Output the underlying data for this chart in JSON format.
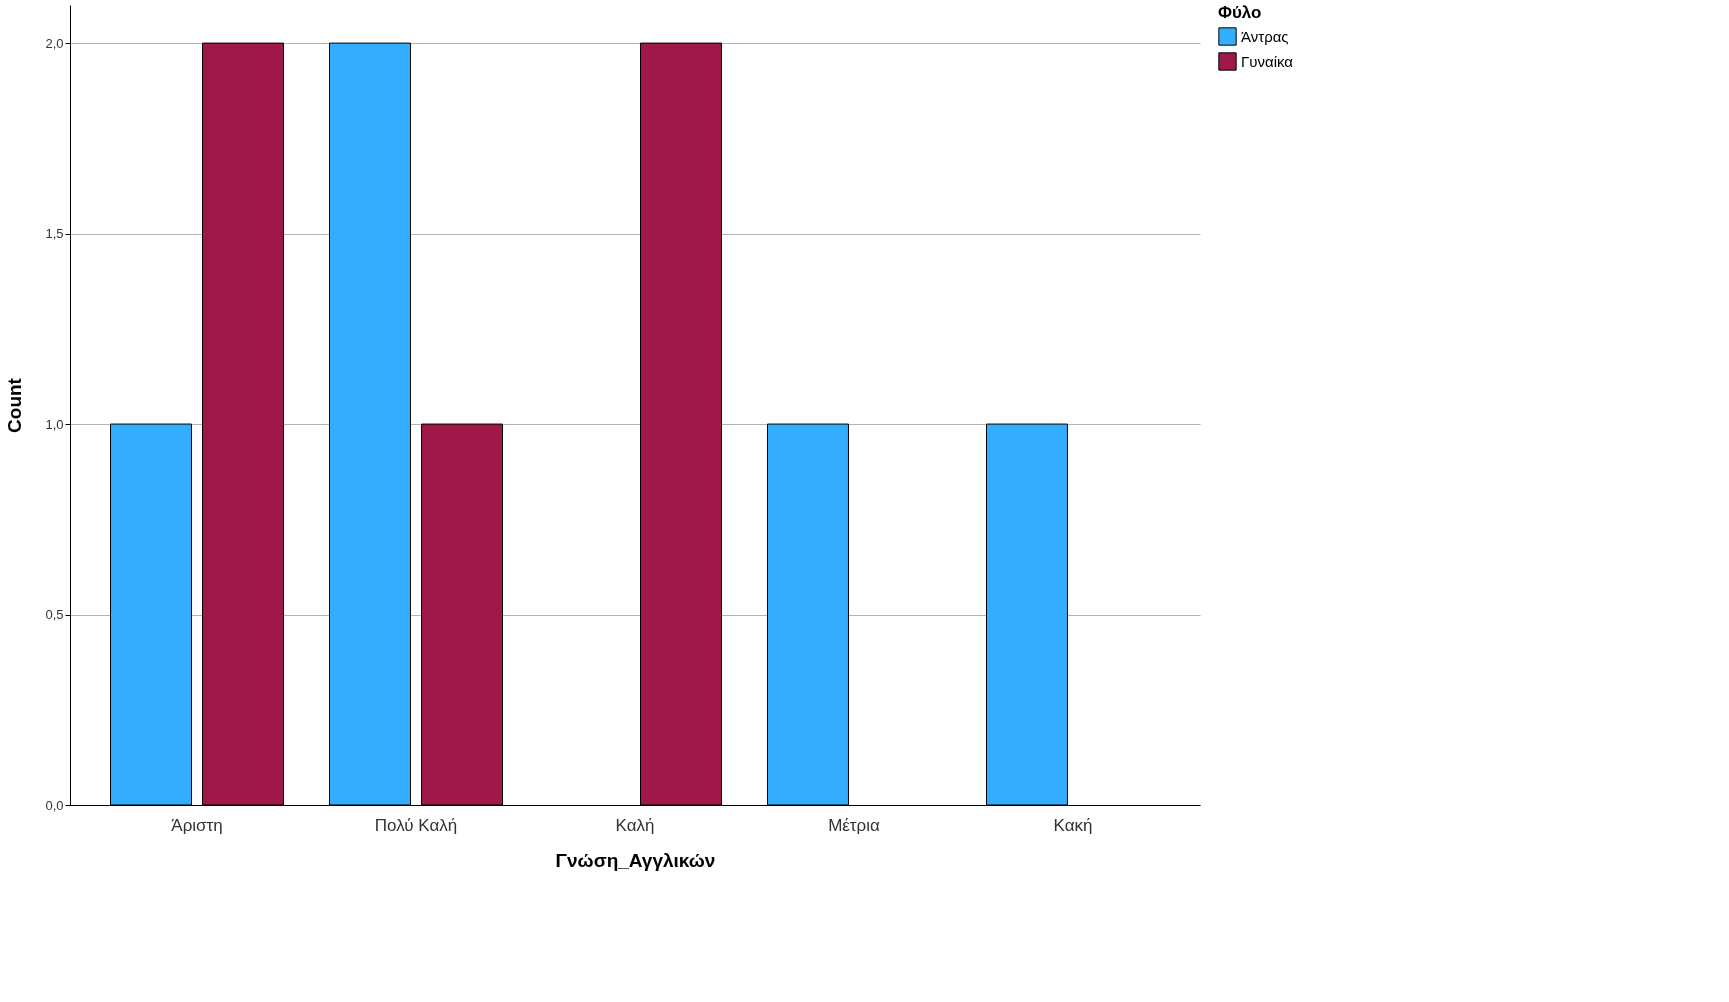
{
  "chart_data": {
    "type": "bar",
    "xlabel": "Γνώση_Αγγλικών",
    "ylabel": "Count",
    "legend_title": "Φύλο",
    "categories": [
      "Άριστη",
      "Πολύ Καλή",
      "Καλή",
      "Μέτρια",
      "Κακή"
    ],
    "series": [
      {
        "name": "Άντρας",
        "color": "#33adff",
        "values": [
          1,
          2,
          null,
          1,
          1
        ]
      },
      {
        "name": "Γυναίκα",
        "color": "#a0174a",
        "values": [
          2,
          1,
          2,
          null,
          null
        ]
      }
    ],
    "ylim": [
      0,
      2.1
    ],
    "yticks": [
      {
        "value": 0,
        "label": "0,0"
      },
      {
        "value": 0.5,
        "label": "0,5"
      },
      {
        "value": 1,
        "label": "1,0"
      },
      {
        "value": 1.5,
        "label": "1,5"
      },
      {
        "value": 2,
        "label": "2,0"
      }
    ],
    "grid": "y",
    "legend": "top right"
  }
}
